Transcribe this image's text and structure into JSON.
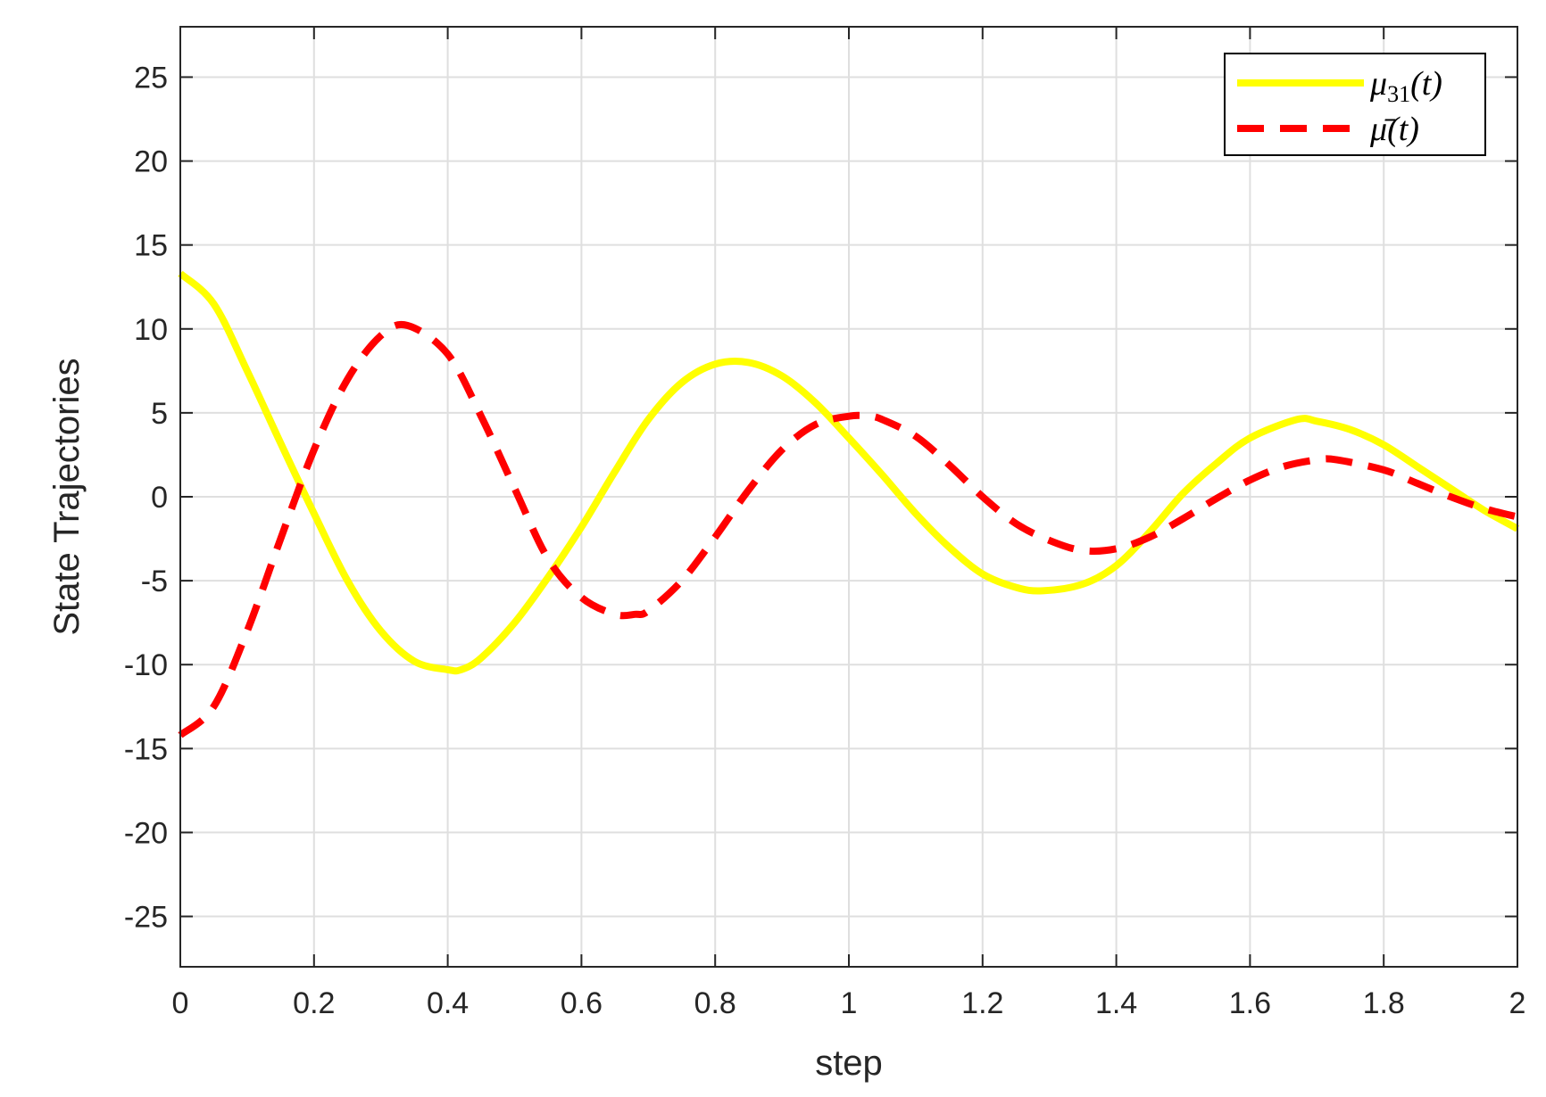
{
  "chart_data": {
    "type": "line",
    "xlabel": "step",
    "ylabel": "State Trajectories",
    "xlim": [
      0,
      2
    ],
    "ylim": [
      -28,
      28
    ],
    "xticks": [
      0,
      0.2,
      0.4,
      0.6,
      0.8,
      1,
      1.2,
      1.4,
      1.6,
      1.8,
      2
    ],
    "xtick_labels": [
      "0",
      "0.2",
      "0.4",
      "0.6",
      "0.8",
      "1",
      "1.2",
      "1.4",
      "1.6",
      "1.8",
      "2"
    ],
    "yticks": [
      -25,
      -20,
      -15,
      -10,
      -5,
      0,
      5,
      10,
      15,
      20,
      25
    ],
    "ytick_labels": [
      "-25",
      "-20",
      "-15",
      "-10",
      "-5",
      "0",
      "5",
      "10",
      "15",
      "20",
      "25"
    ],
    "grid": true,
    "legend_position": "top-right",
    "series": [
      {
        "name": "μ31(t)",
        "name_base": "μ",
        "name_sub": "31",
        "name_tail": "(t)",
        "color": "#ffff00",
        "style": "solid",
        "x": [
          0,
          0.05,
          0.1,
          0.15,
          0.2,
          0.25,
          0.3,
          0.35,
          0.4,
          0.42,
          0.45,
          0.5,
          0.55,
          0.6,
          0.65,
          0.7,
          0.75,
          0.8,
          0.85,
          0.9,
          0.95,
          1.0,
          1.05,
          1.1,
          1.15,
          1.2,
          1.25,
          1.29,
          1.35,
          1.4,
          1.45,
          1.5,
          1.55,
          1.6,
          1.67,
          1.7,
          1.75,
          1.8,
          1.85,
          1.9,
          1.95,
          2.0
        ],
        "y": [
          13.3,
          11.5,
          7.5,
          3.2,
          -1.0,
          -5.0,
          -8.0,
          -9.8,
          -10.3,
          -10.3,
          -9.6,
          -7.5,
          -4.8,
          -1.8,
          1.5,
          4.6,
          6.8,
          7.9,
          8.0,
          7.2,
          5.6,
          3.5,
          1.3,
          -1.0,
          -3.0,
          -4.6,
          -5.4,
          -5.6,
          -5.2,
          -4.1,
          -2.1,
          0.2,
          2.0,
          3.5,
          4.6,
          4.5,
          4.0,
          3.1,
          1.8,
          0.5,
          -0.8,
          -1.9
        ]
      },
      {
        "name": "μ̄(t)",
        "name_base": "μ̄",
        "name_sub": "",
        "name_tail": "(t)",
        "color": "#ff0000",
        "style": "dashed",
        "x": [
          0,
          0.05,
          0.1,
          0.15,
          0.2,
          0.25,
          0.3,
          0.34,
          0.4,
          0.45,
          0.5,
          0.55,
          0.6,
          0.65,
          0.68,
          0.7,
          0.75,
          0.8,
          0.85,
          0.9,
          0.95,
          1.0,
          1.03,
          1.05,
          1.1,
          1.15,
          1.2,
          1.25,
          1.3,
          1.35,
          1.4,
          1.45,
          1.5,
          1.55,
          1.6,
          1.65,
          1.7,
          1.73,
          1.8,
          1.85,
          1.9,
          1.95,
          2.0
        ],
        "y": [
          -14.2,
          -12.5,
          -8.0,
          -2.5,
          2.8,
          7.0,
          9.6,
          10.2,
          8.5,
          4.8,
          0.5,
          -3.7,
          -6.0,
          -7.0,
          -7.0,
          -6.8,
          -5.0,
          -2.4,
          0.4,
          2.8,
          4.3,
          4.8,
          4.8,
          4.6,
          3.6,
          1.9,
          0.0,
          -1.6,
          -2.6,
          -3.2,
          -3.1,
          -2.4,
          -1.3,
          -0.1,
          1.0,
          1.8,
          2.2,
          2.2,
          1.6,
          0.8,
          0.0,
          -0.7,
          -1.2
        ]
      }
    ]
  }
}
